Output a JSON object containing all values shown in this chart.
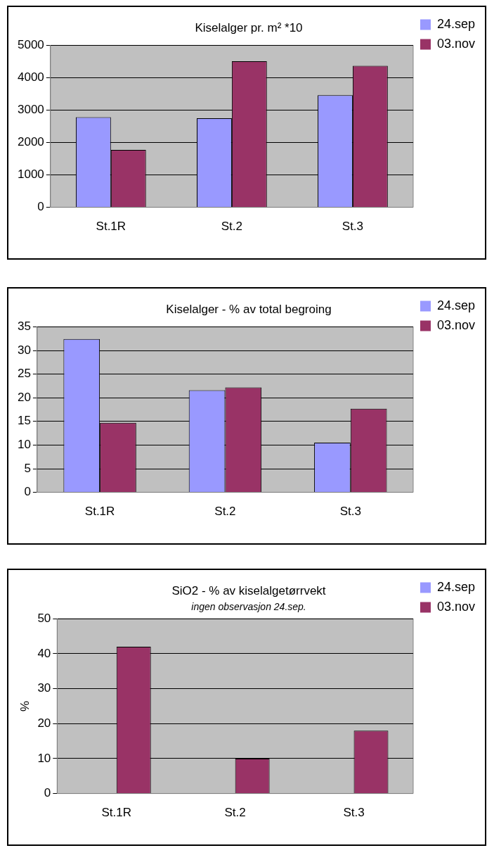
{
  "chart_data": [
    {
      "type": "bar",
      "title": "Kiselalger pr. m² *10",
      "categories": [
        "St.1R",
        "St.2",
        "St.3"
      ],
      "series": [
        {
          "name": "24.sep",
          "color": "#9999ff",
          "values": [
            2780,
            2750,
            3460
          ]
        },
        {
          "name": "03.nov",
          "color": "#993366",
          "values": [
            1770,
            4510,
            4370
          ]
        }
      ],
      "ylim": [
        0,
        5000
      ],
      "yticks": [
        0,
        1000,
        2000,
        3000,
        4000,
        5000
      ],
      "grid": "y",
      "legend": "top right"
    },
    {
      "type": "bar",
      "title": "Kiselalger - % av total begroing",
      "categories": [
        "St.1R",
        "St.2",
        "St.3"
      ],
      "series": [
        {
          "name": "24.sep",
          "color": "#9999ff",
          "values": [
            32.4,
            21.6,
            10.5
          ]
        },
        {
          "name": "03.nov",
          "color": "#993366",
          "values": [
            14.7,
            22.2,
            17.7
          ]
        }
      ],
      "ylim": [
        0,
        35
      ],
      "yticks": [
        0,
        5,
        10,
        15,
        20,
        25,
        30,
        35
      ],
      "grid": "y",
      "legend": "top right"
    },
    {
      "type": "bar",
      "title": "SiO2 - % av kiselalgetørrvekt",
      "subtitle": "ingen observasjon 24.sep.",
      "ylabel": "%",
      "categories": [
        "St.1R",
        "St.2",
        "St.3"
      ],
      "series": [
        {
          "name": "24.sep",
          "color": "#9999ff",
          "values": [
            null,
            null,
            null
          ]
        },
        {
          "name": "03.nov",
          "color": "#993366",
          "values": [
            42,
            10,
            18
          ]
        }
      ],
      "ylim": [
        0,
        50
      ],
      "yticks": [
        0,
        10,
        20,
        30,
        40,
        50
      ],
      "grid": "y",
      "legend": "top right"
    }
  ]
}
